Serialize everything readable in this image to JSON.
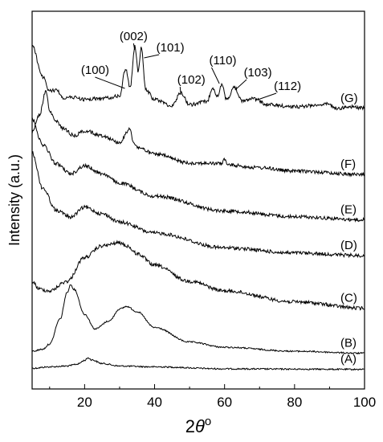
{
  "chart_data": {
    "type": "line",
    "title": "",
    "xlabel": "2θ°",
    "ylabel": "Intensity (a.u.)",
    "xlim": [
      5,
      100
    ],
    "x_ticks": [
      20,
      40,
      60,
      80,
      100
    ],
    "y_ticks": [],
    "grid": false,
    "legend": "none",
    "series": [
      {
        "name": "(A)",
        "x": [
          5,
          10,
          15,
          18,
          20,
          21,
          22,
          25,
          30,
          40,
          60,
          80,
          100
        ],
        "values": [
          0.05,
          0.1,
          0.13,
          0.2,
          0.33,
          0.42,
          0.35,
          0.22,
          0.13,
          0.1,
          0.03,
          0.02,
          0.01
        ]
      },
      {
        "name": "(B)",
        "x": [
          5,
          8,
          10,
          13,
          15,
          16,
          17,
          20,
          23,
          27,
          30,
          32,
          35,
          40,
          50,
          60,
          80,
          100
        ],
        "values": [
          0.06,
          0.09,
          0.17,
          0.55,
          0.95,
          1.07,
          1.0,
          0.62,
          0.4,
          0.52,
          0.7,
          0.74,
          0.66,
          0.42,
          0.2,
          0.12,
          0.06,
          0.03
        ]
      },
      {
        "name": "(C)",
        "x": [
          5,
          7,
          10,
          15,
          20,
          25,
          30,
          32,
          35,
          40,
          50,
          60,
          80,
          100
        ],
        "values": [
          0.55,
          0.43,
          0.4,
          0.55,
          0.92,
          1.1,
          1.15,
          1.1,
          0.98,
          0.8,
          0.55,
          0.4,
          0.23,
          0.13
        ]
      },
      {
        "name": "(D)",
        "x": [
          5,
          8,
          12,
          16,
          20,
          25,
          30,
          40,
          60,
          80,
          100
        ],
        "values": [
          1.7,
          1.15,
          0.8,
          0.7,
          0.85,
          0.75,
          0.62,
          0.45,
          0.22,
          0.14,
          0.1
        ]
      },
      {
        "name": "(E)",
        "x": [
          5,
          8,
          12,
          16,
          20,
          25,
          30,
          40,
          60,
          80,
          100
        ],
        "values": [
          1.65,
          1.25,
          0.95,
          0.8,
          0.92,
          0.8,
          0.65,
          0.45,
          0.22,
          0.13,
          0.08
        ]
      },
      {
        "name": "(F)",
        "x": [
          5,
          7,
          9,
          10,
          12,
          14,
          17,
          20,
          25,
          30,
          33,
          34,
          35,
          40,
          50,
          59,
          60,
          61,
          70,
          80,
          100
        ],
        "values": [
          0.7,
          0.95,
          1.3,
          1.0,
          0.85,
          0.75,
          0.65,
          0.72,
          0.65,
          0.55,
          0.75,
          0.55,
          0.48,
          0.38,
          0.25,
          0.24,
          0.3,
          0.22,
          0.18,
          0.13,
          0.08
        ]
      },
      {
        "name": "(G)",
        "x": [
          5,
          8,
          10,
          12,
          14,
          17,
          20,
          25,
          30,
          31.7,
          33,
          34.4,
          35.3,
          36.2,
          37.5,
          40,
          45,
          47.5,
          50,
          55,
          56.6,
          58,
          59.3,
          60.5,
          62.9,
          65,
          67.9,
          69.1,
          72,
          80,
          89.6,
          92,
          96,
          100
        ],
        "values": [
          1.25,
          0.65,
          0.38,
          0.4,
          0.25,
          0.26,
          0.22,
          0.24,
          0.28,
          0.8,
          0.45,
          1.25,
          0.75,
          1.2,
          0.4,
          0.22,
          0.1,
          0.35,
          0.12,
          0.18,
          0.45,
          0.28,
          0.5,
          0.22,
          0.45,
          0.18,
          0.25,
          0.22,
          0.12,
          0.08,
          0.13,
          0.05,
          0.08,
          0.05
        ]
      }
    ],
    "annotations": [
      "(100)",
      "(002)",
      "(101)",
      "(102)",
      "(110)",
      "(103)",
      "(112)"
    ]
  }
}
